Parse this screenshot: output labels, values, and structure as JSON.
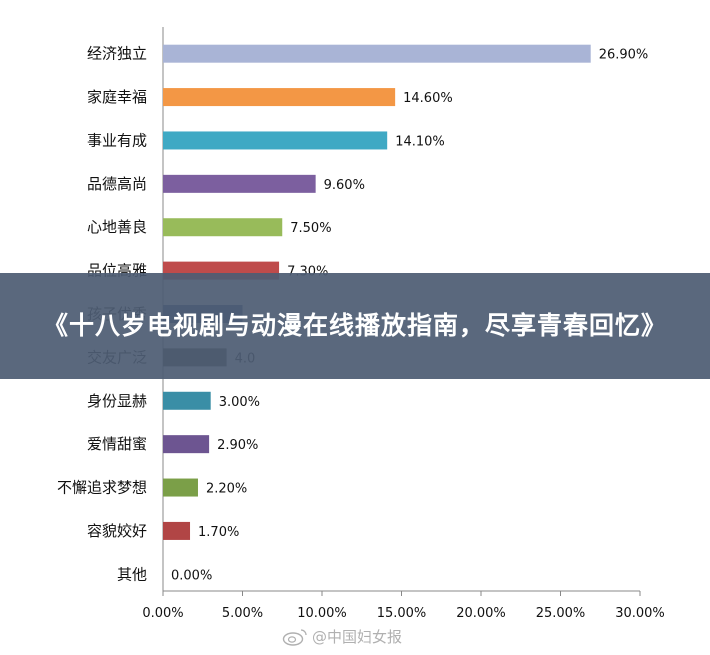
{
  "chart_data": {
    "type": "bar",
    "orientation": "horizontal",
    "categories": [
      "经济独立",
      "家庭幸福",
      "事业有成",
      "品德高尚",
      "心地善良",
      "品位高雅",
      "孩子优秀",
      "交友广泛",
      "身份显赫",
      "爱情甜蜜",
      "不懈追求梦想",
      "容貌姣好",
      "其他"
    ],
    "values": [
      26.9,
      14.6,
      14.1,
      9.6,
      7.5,
      7.3,
      5.0,
      4.0,
      3.0,
      2.9,
      2.2,
      1.7,
      0.0
    ],
    "data_labels": [
      "26.90%",
      "14.60%",
      "14.10%",
      "9.60%",
      "7.50%",
      "7.30%",
      "",
      "4.0",
      "3.00%",
      "2.90%",
      "2.20%",
      "1.70%",
      "0.00%"
    ],
    "colors": [
      "#a9b4d6",
      "#f39745",
      "#3fa9c4",
      "#7c5f9f",
      "#98bb5a",
      "#bf4b4b",
      "#3d5a8a",
      "#4d4441",
      "#3a8ea6",
      "#6d5591",
      "#7b9f48",
      "#b14545",
      "#999999"
    ],
    "xlim": [
      0,
      30
    ],
    "x_ticks": [
      "0.00%",
      "5.00%",
      "10.00%",
      "15.00%",
      "20.00%",
      "25.00%",
      "30.00%"
    ],
    "grid": false,
    "legend": "none"
  },
  "banner": {
    "title": "《十八岁电视剧与动漫在线播放指南，尽享青春回忆》"
  },
  "watermark": {
    "text": "@中国妇女报",
    "icon": "weibo-icon"
  }
}
